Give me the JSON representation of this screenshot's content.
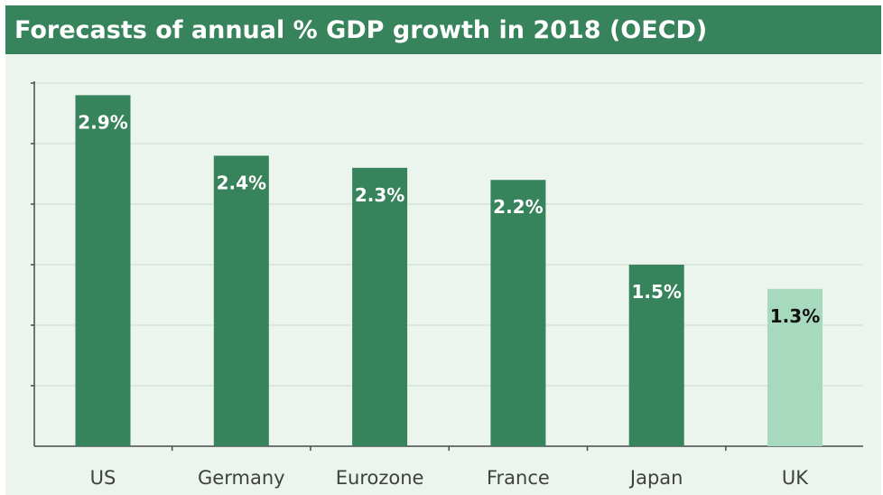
{
  "chart_data": {
    "type": "bar",
    "title": "Forecasts of annual % GDP growth in 2018 (OECD)",
    "categories": [
      "US",
      "Germany",
      "Eurozone",
      "France",
      "Japan",
      "UK"
    ],
    "values": [
      2.9,
      2.4,
      2.3,
      2.2,
      1.5,
      1.3
    ],
    "value_labels": [
      "2.9%",
      "2.4%",
      "2.3%",
      "2.2%",
      "1.5%",
      "1.3%"
    ],
    "ylim": [
      0,
      3.0
    ],
    "grid": true,
    "legend": "none",
    "colors": {
      "default_bar": "#37835b",
      "highlight_bar": "#a6d9bd",
      "default_label": "#ffffff",
      "highlight_label": "#111111"
    },
    "highlight_index": 5
  }
}
